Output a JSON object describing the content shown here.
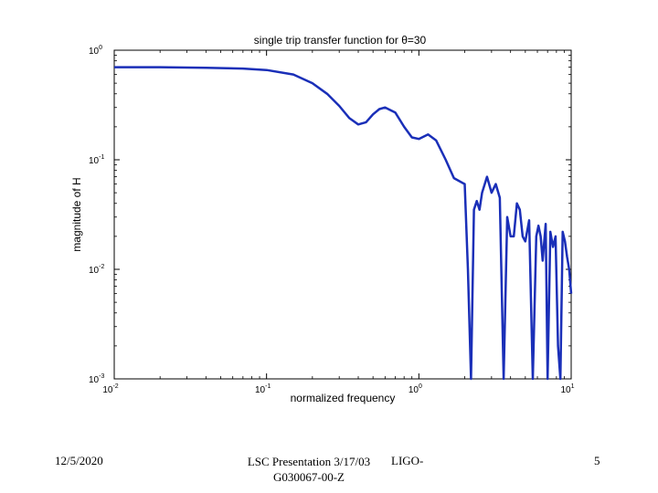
{
  "chart_data": {
    "type": "line",
    "title": "single trip transfer function for θ=30",
    "xlabel": "normalized frequency",
    "ylabel": "magnitude of H",
    "xscale": "log",
    "yscale": "log",
    "xlim": [
      0.01,
      10
    ],
    "ylim": [
      0.001,
      1
    ],
    "xticks": [
      {
        "value": 0.01,
        "base": "10",
        "exp": "-2"
      },
      {
        "value": 0.1,
        "base": "10",
        "exp": "-1"
      },
      {
        "value": 1,
        "base": "10",
        "exp": "0"
      },
      {
        "value": 10,
        "base": "10",
        "exp": "1"
      }
    ],
    "yticks": [
      {
        "value": 0.001,
        "base": "10",
        "exp": "-3"
      },
      {
        "value": 0.01,
        "base": "10",
        "exp": "-2"
      },
      {
        "value": 0.1,
        "base": "10",
        "exp": "-1"
      },
      {
        "value": 1,
        "base": "10",
        "exp": "0"
      }
    ],
    "series": [
      {
        "color": "#1a2fb8",
        "x": [
          0.01,
          0.02,
          0.04,
          0.07,
          0.1,
          0.15,
          0.2,
          0.25,
          0.3,
          0.35,
          0.4,
          0.45,
          0.5,
          0.55,
          0.6,
          0.7,
          0.8,
          0.9,
          1.0,
          1.15,
          1.3,
          1.5,
          1.7,
          2.0,
          2.1,
          2.2,
          2.3,
          2.4,
          2.5,
          2.6,
          2.8,
          3.0,
          3.2,
          3.4,
          3.6,
          3.8,
          4.0,
          4.2,
          4.4,
          4.6,
          4.8,
          5.0,
          5.3,
          5.6,
          5.9,
          6.1,
          6.3,
          6.5,
          6.8,
          7.0,
          7.3,
          7.6,
          7.9,
          8.2,
          8.5,
          8.8,
          9.1,
          9.4,
          9.7,
          10.0
        ],
        "y": [
          0.7,
          0.7,
          0.69,
          0.68,
          0.66,
          0.6,
          0.5,
          0.4,
          0.31,
          0.24,
          0.21,
          0.22,
          0.26,
          0.29,
          0.3,
          0.27,
          0.2,
          0.16,
          0.155,
          0.17,
          0.15,
          0.1,
          0.068,
          0.06,
          0.01,
          0.001,
          0.035,
          0.042,
          0.035,
          0.05,
          0.07,
          0.05,
          0.06,
          0.045,
          0.001,
          0.03,
          0.02,
          0.02,
          0.04,
          0.035,
          0.02,
          0.018,
          0.028,
          0.001,
          0.02,
          0.025,
          0.02,
          0.012,
          0.026,
          0.001,
          0.022,
          0.016,
          0.02,
          0.002,
          0.001,
          0.022,
          0.018,
          0.013,
          0.01,
          0.006
        ]
      }
    ]
  },
  "footer": {
    "date": "12/5/2020",
    "center_line1": "LSC Presentation 3/17/03",
    "center_line2": "G030067-00-Z",
    "ligo": "LIGO-",
    "page": "5"
  }
}
